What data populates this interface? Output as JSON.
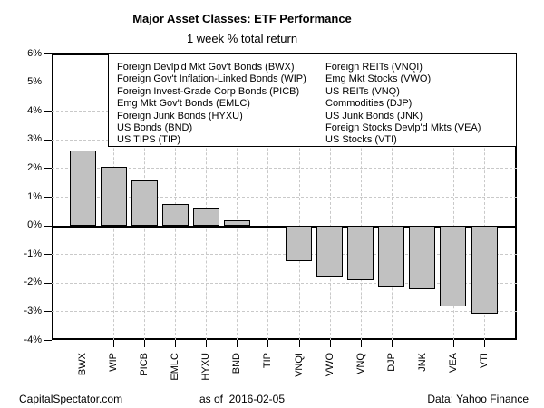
{
  "header": {
    "title": "Major Asset Classes: ETF Performance",
    "subtitle": "1 week % total return"
  },
  "legend": {
    "left_column": [
      "Foreign Devlp'd Mkt Gov't Bonds (BWX)",
      "Foreign Gov't Inflation-Linked Bonds (WIP)",
      "Foreign Invest-Grade Corp Bonds (PICB)",
      "Emg Mkt Gov't Bonds (EMLC)",
      "Foreign Junk Bonds (HYXU)",
      "US Bonds (BND)",
      "US TIPS (TIP)"
    ],
    "right_column": [
      "Foreign REITs (VNQI)",
      "Emg Mkt Stocks (VWO)",
      "US REITs (VNQ)",
      "Commodities (DJP)",
      "US Junk Bonds (JNK)",
      "Foreign Stocks Devlp'd Mkts (VEA)",
      "US Stocks (VTI)"
    ]
  },
  "chart_data": {
    "type": "bar",
    "title": "Major Asset Classes: ETF Performance",
    "subtitle": "1 week % total return",
    "categories": [
      "BWX",
      "WIP",
      "PICB",
      "EMLC",
      "HYXU",
      "BND",
      "TIP",
      "VNQI",
      "VWO",
      "VNQ",
      "DJP",
      "JNK",
      "VEA",
      "VTI"
    ],
    "values": [
      2.62,
      2.05,
      1.56,
      0.75,
      0.62,
      0.17,
      0.0,
      -1.24,
      -1.78,
      -1.91,
      -2.14,
      -2.22,
      -2.83,
      -3.09
    ],
    "xlabel": "",
    "ylabel": "",
    "ylim": [
      -4,
      6
    ],
    "yticks": [
      6,
      5,
      4,
      3,
      2,
      1,
      0,
      -1,
      -2,
      -3,
      -4
    ],
    "ytick_labels": [
      "6%",
      "5%",
      "4%",
      "3%",
      "2%",
      "1%",
      "0%",
      "-1%",
      "-2%",
      "-3%",
      "-4%"
    ],
    "grid": "dashed horizontal and vertical gridlines, solid zero line",
    "legend_position": "top inside plot",
    "bar_fill": "#c1c1c1",
    "bar_border": "#000000",
    "gridline_color": "#c9c9c9"
  },
  "footer": {
    "left": "CapitalSpectator.com",
    "center": "as of  2016-02-05",
    "right": "Data: Yahoo Finance"
  }
}
